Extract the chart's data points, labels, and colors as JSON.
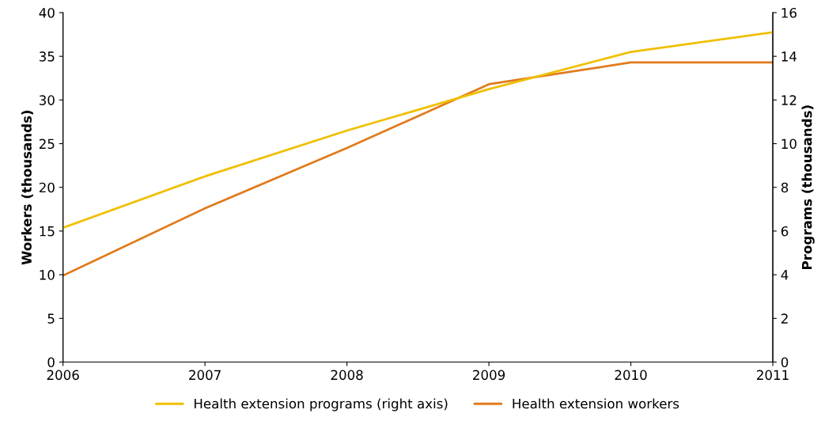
{
  "chart_data": {
    "type": "line",
    "ylabel": "Workers (thousands)",
    "y2label": "Programs (thousands)",
    "x": [
      2006,
      2007,
      2008,
      2009,
      2010,
      2011
    ],
    "series": [
      {
        "name": "Health extension programs (right axis)",
        "color": "#f0bf00",
        "axis": "y2",
        "values": [
          6.15,
          8.5,
          10.6,
          12.5,
          14.2,
          15.1
        ]
      },
      {
        "name": "Health extension workers",
        "color": "#e07b1c",
        "values": [
          9.9,
          17.6,
          24.5,
          31.8,
          34.3,
          34.3
        ]
      }
    ],
    "xlim": [
      2006,
      2011
    ],
    "xticks": [
      2006,
      2007,
      2008,
      2009,
      2010,
      2011
    ],
    "ylim": [
      0,
      40
    ],
    "yticks": [
      0,
      5,
      10,
      15,
      20,
      25,
      30,
      35,
      40
    ],
    "y2lim": [
      0,
      16
    ],
    "y2ticks": [
      0,
      2,
      4,
      6,
      8,
      10,
      12,
      14,
      16
    ],
    "grid": false,
    "legend": "bottom",
    "marker": "none",
    "line_style": "solid"
  }
}
